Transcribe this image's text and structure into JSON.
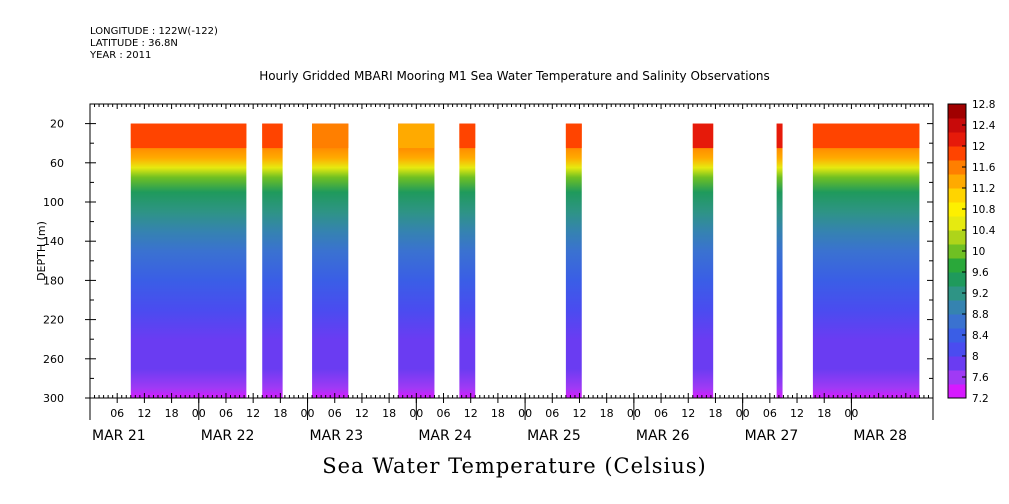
{
  "meta": {
    "longitude": "LONGITUDE : 122W(-122)",
    "latitude": "LATITUDE : 36.8N",
    "year": "YEAR : 2011"
  },
  "chart_data": {
    "type": "heatmap",
    "title": "Hourly Gridded MBARI Mooring M1 Sea Water Temperature and Salinity Observations",
    "caption": "Sea Water Temperature (Celsius)",
    "ylabel": "DEPTH (m)",
    "xlabel": "",
    "ylim": [
      300,
      0
    ],
    "y_ticks": [
      20,
      60,
      100,
      140,
      180,
      220,
      260,
      300
    ],
    "x_hour_ticks": [
      "06",
      "12",
      "18",
      "00",
      "06",
      "12",
      "18",
      "00",
      "06",
      "12",
      "18",
      "00",
      "06",
      "12",
      "18",
      "00",
      "06",
      "12",
      "18",
      "00",
      "06",
      "12",
      "18",
      "00",
      "06",
      "12",
      "18",
      "00"
    ],
    "x_date_labels": [
      "MAR 21",
      "MAR 22",
      "MAR 23",
      "MAR 24",
      "MAR 25",
      "MAR 26",
      "MAR 27",
      "MAR 28"
    ],
    "x_range_hours": [
      0,
      186
    ],
    "x_origin": "2011-03-21T00:00",
    "colorbar": {
      "levels": [
        7.2,
        7.6,
        8,
        8.4,
        8.8,
        9.2,
        9.6,
        10,
        10.4,
        10.8,
        11.2,
        11.6,
        12,
        12.4,
        12.8
      ],
      "colors": [
        "#d61aff",
        "#a03af5",
        "#6a3cf2",
        "#4a4cf0",
        "#3a5ee6",
        "#3a72d0",
        "#3583b0",
        "#2e9485",
        "#1f9a5c",
        "#2aa83a",
        "#6fc023",
        "#aed41a",
        "#e6ea10",
        "#fdf000",
        "#ffd400",
        "#ffaa00",
        "#ff7f00",
        "#ff4400",
        "#e61a0a",
        "#c80a0a",
        "#a00000"
      ],
      "tick_labels": [
        "7.2",
        "7.6",
        "8",
        "8.4",
        "8.8",
        "9.2",
        "9.6",
        "10",
        "10.4",
        "10.8",
        "11.2",
        "11.6",
        "12",
        "12.4",
        "12.8"
      ]
    },
    "segments": [
      {
        "start_hour": 9,
        "end_hour": 34.5,
        "surface_temp": 11.9
      },
      {
        "start_hour": 38,
        "end_hour": 42.5,
        "surface_temp": 11.9
      },
      {
        "start_hour": 49,
        "end_hour": 57,
        "surface_temp": 11.6
      },
      {
        "start_hour": 68,
        "end_hour": 76,
        "surface_temp": 11.3
      },
      {
        "start_hour": 81.5,
        "end_hour": 85,
        "surface_temp": 11.8
      },
      {
        "start_hour": 105,
        "end_hour": 108.5,
        "surface_temp": 11.9
      },
      {
        "start_hour": 133,
        "end_hour": 137.5,
        "surface_temp": 12.2
      },
      {
        "start_hour": 151.5,
        "end_hour": 152.8,
        "surface_temp": 12.2
      },
      {
        "start_hour": 159.5,
        "end_hour": 183,
        "surface_temp": 11.9
      }
    ],
    "profile": [
      {
        "depth": 20,
        "temp": 11.9
      },
      {
        "depth": 40,
        "temp": 11.7
      },
      {
        "depth": 55,
        "temp": 11.3
      },
      {
        "depth": 65,
        "temp": 10.6
      },
      {
        "depth": 75,
        "temp": 10.0
      },
      {
        "depth": 90,
        "temp": 9.6
      },
      {
        "depth": 110,
        "temp": 9.2
      },
      {
        "depth": 130,
        "temp": 8.9
      },
      {
        "depth": 150,
        "temp": 8.7
      },
      {
        "depth": 180,
        "temp": 8.4
      },
      {
        "depth": 210,
        "temp": 8.2
      },
      {
        "depth": 240,
        "temp": 8.0
      },
      {
        "depth": 270,
        "temp": 7.8
      },
      {
        "depth": 290,
        "temp": 7.5
      },
      {
        "depth": 300,
        "temp": 7.3
      }
    ]
  }
}
